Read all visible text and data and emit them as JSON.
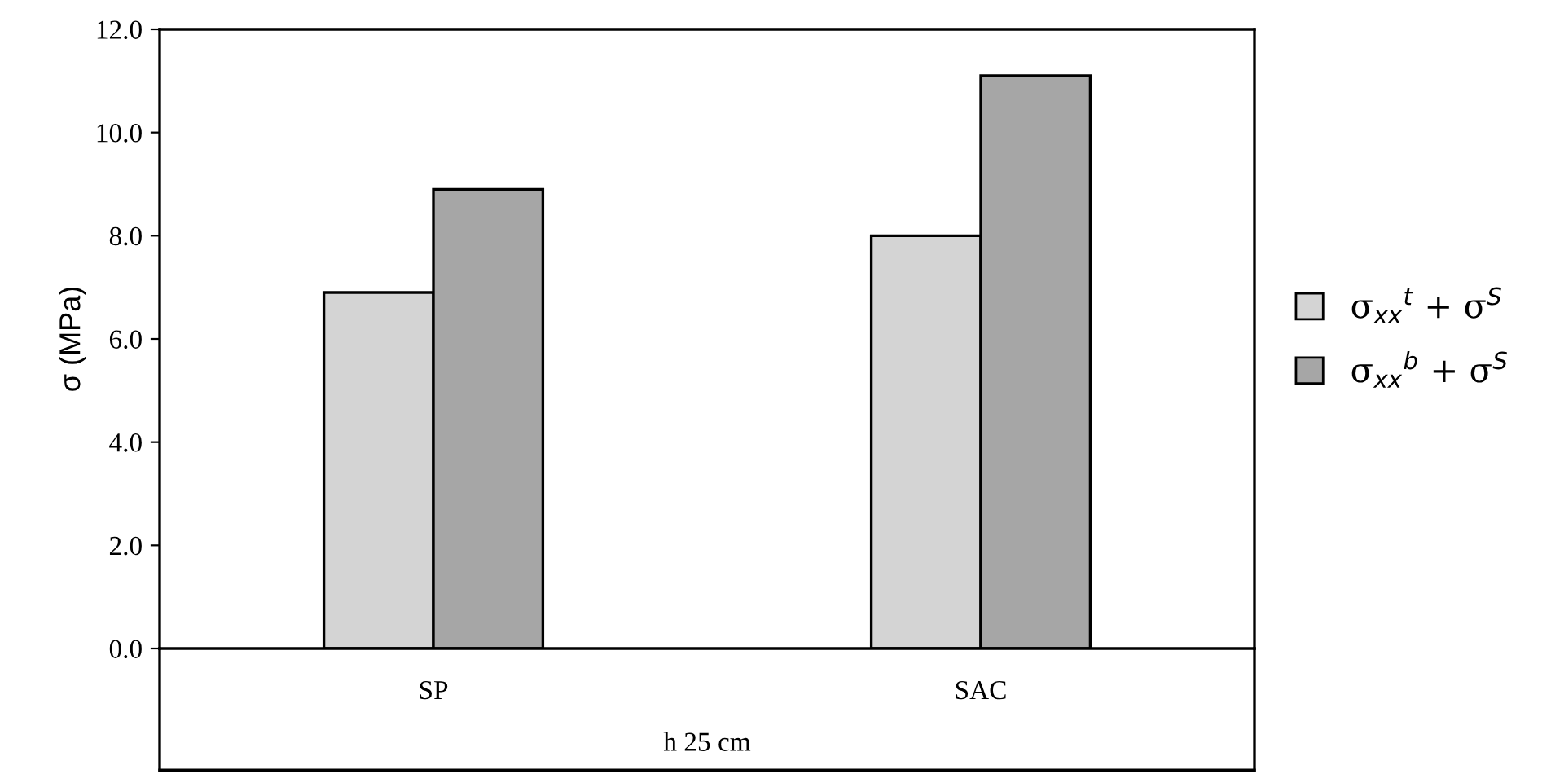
{
  "chart_data": {
    "type": "bar",
    "ylabel": "σ (MPa)",
    "xlabel": "h 25 cm",
    "categories": [
      "SP",
      "SAC"
    ],
    "series": [
      {
        "name": "σ$_{xx}$$^{t}$ + σ$^{S}$",
        "color": "#d4d4d4",
        "values": [
          6.9,
          8.0
        ]
      },
      {
        "name": "σ$_{xx}$$^{b}$ + σ$^{S}$",
        "color": "#a6a6a6",
        "values": [
          8.9,
          11.1
        ]
      }
    ],
    "ylim": [
      0,
      12
    ],
    "yticks": [
      {
        "value": 0,
        "label": "0.0"
      },
      {
        "value": 2,
        "label": "2.0"
      },
      {
        "value": 4,
        "label": "4.0"
      },
      {
        "value": 6,
        "label": "6.0"
      },
      {
        "value": 8,
        "label": "8.0"
      },
      {
        "value": 10,
        "label": "10.0"
      },
      {
        "value": 12,
        "label": "12.0"
      }
    ],
    "grid": false,
    "legend": "right"
  }
}
